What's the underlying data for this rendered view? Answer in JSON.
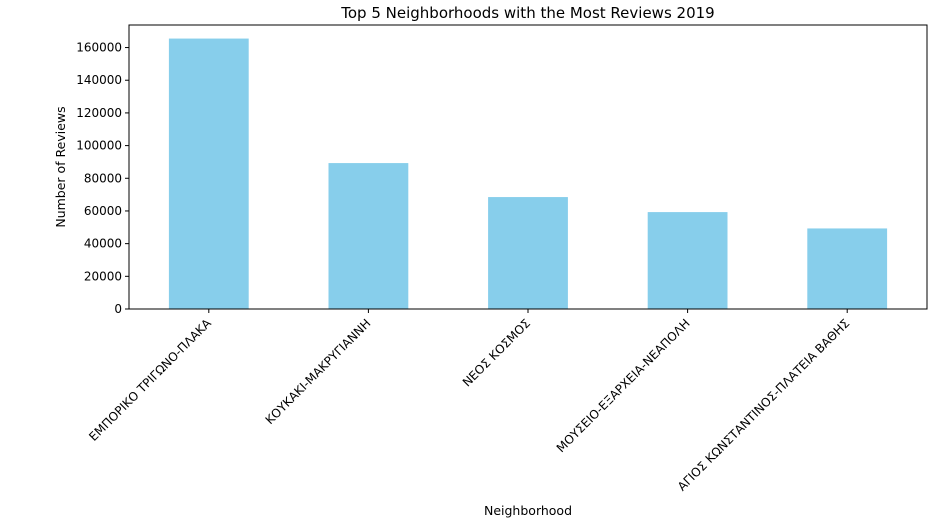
{
  "chart_data": {
    "type": "bar",
    "title": "Top 5 Neighborhoods with the Most Reviews 2019",
    "xlabel": "Neighborhood",
    "ylabel": "Number of Reviews",
    "categories": [
      "ΕΜΠΟΡΙΚΟ ΤΡΙΓΩΝΟ-ΠΛΑΚΑ",
      "ΚΟΥΚΑΚΙ-ΜΑΚΡΥΓΙΑΝΝΗ",
      "ΝΕΟΣ ΚΟΣΜΟΣ",
      "ΜΟΥΣΕΙΟ-ΕΞΑΡΧΕΙΑ-ΝΕΑΠΟΛΗ",
      "ΑΓΙΟΣ ΚΩΝΣΤΑΝΤΙΝΟΣ-ΠΛΑΤΕΙΑ ΒΑΘΗΣ"
    ],
    "values": [
      165500,
      89300,
      68500,
      59300,
      49300
    ],
    "ylim": [
      0,
      173800
    ],
    "yticks": [
      0,
      20000,
      40000,
      60000,
      80000,
      100000,
      120000,
      140000,
      160000
    ],
    "ytick_labels": [
      "0",
      "20000",
      "40000",
      "60000",
      "80000",
      "100000",
      "120000",
      "140000",
      "160000"
    ],
    "bar_color": "#87ceeb",
    "grid": false,
    "legend": "none"
  }
}
